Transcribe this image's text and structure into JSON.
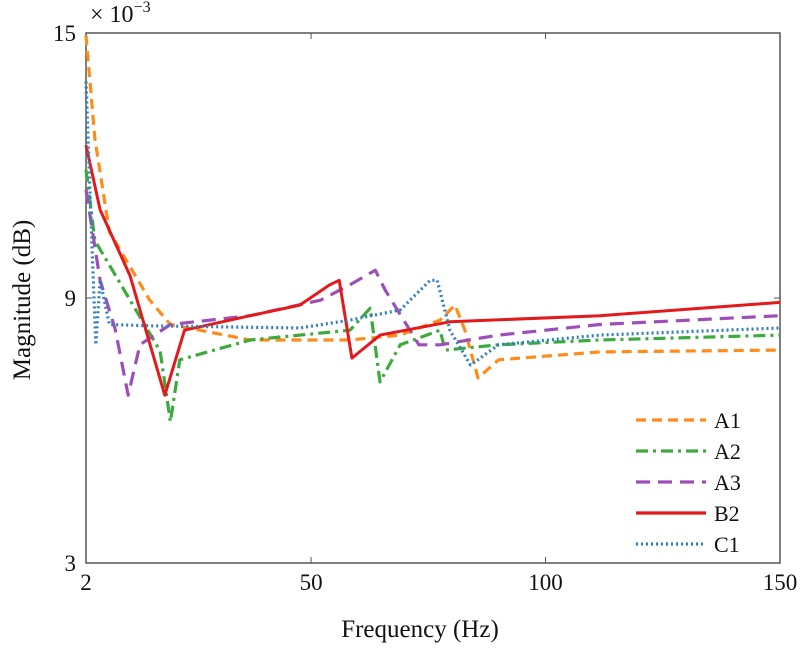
{
  "chart_data": {
    "type": "line",
    "title": "",
    "xlabel": "Frequency (Hz)",
    "ylabel": "Magnitude (dB)",
    "y_exponent": "× 10",
    "y_exponent_power": "−3",
    "xlim": [
      2,
      150
    ],
    "ylim": [
      3,
      15
    ],
    "xticks": [
      2,
      50,
      100,
      150
    ],
    "yticks": [
      3,
      9,
      15
    ],
    "grid": false,
    "legend_position": "bottom-right",
    "series": [
      {
        "name": "A1",
        "color": "#ff8c1a",
        "dash": "dashed",
        "x": [
          2,
          3.9,
          7,
          15.6,
          20,
          37,
          58.3,
          69,
          77.5,
          80.7,
          82.8,
          85.6,
          90,
          111.6,
          150
        ],
        "y": [
          14.95,
          12.6,
          10.5,
          8.95,
          8.4,
          8.05,
          8.05,
          8.16,
          8.5,
          8.84,
          8.27,
          7.19,
          7.6,
          7.78,
          7.82
        ]
      },
      {
        "name": "A2",
        "color": "#3daa3d",
        "dash": "dashdot",
        "x": [
          2,
          3.9,
          11.4,
          17.8,
          20,
          22,
          37,
          58.3,
          62.6,
          64.7,
          69,
          77.5,
          78.6,
          90,
          111.6,
          150
        ],
        "y": [
          11.9,
          10.3,
          8.95,
          7.8,
          6.2,
          7.6,
          8.05,
          8.27,
          8.77,
          7.1,
          7.94,
          8.27,
          7.82,
          7.94,
          8.05,
          8.16
        ]
      },
      {
        "name": "A3",
        "color": "#9c4fb8",
        "dash": "longdash",
        "x": [
          2,
          5,
          8.2,
          11,
          13.5,
          20,
          37,
          52,
          58.3,
          63.7,
          65.8,
          73,
          77.5,
          90,
          111.6,
          150
        ],
        "y": [
          11.45,
          9.4,
          8.3,
          6.8,
          7.94,
          8.4,
          8.6,
          8.95,
          9.3,
          9.63,
          9.18,
          7.94,
          7.94,
          8.16,
          8.4,
          8.6
        ]
      },
      {
        "name": "B2",
        "color": "#e3191c",
        "dash": "solid",
        "x": [
          2,
          5,
          11.4,
          18.8,
          23,
          37,
          47.6,
          54,
          56,
          58.7,
          64.7,
          79.6,
          111.6,
          150
        ],
        "y": [
          12.46,
          11.0,
          9.5,
          6.8,
          8.27,
          8.6,
          8.84,
          9.3,
          9.4,
          7.64,
          8.16,
          8.46,
          8.6,
          8.9
        ]
      },
      {
        "name": "C1",
        "color": "#2f7fc1",
        "dash": "dotted",
        "x": [
          2,
          3.3,
          4.1,
          5,
          7,
          15.6,
          47.6,
          58.3,
          69,
          75.4,
          76.9,
          79.6,
          84,
          90,
          111.6,
          150
        ],
        "y": [
          13.9,
          10.1,
          7.94,
          9.4,
          8.4,
          8.37,
          8.32,
          8.5,
          8.73,
          9.4,
          9.4,
          8.27,
          7.48,
          7.94,
          8.16,
          8.32
        ]
      }
    ]
  }
}
